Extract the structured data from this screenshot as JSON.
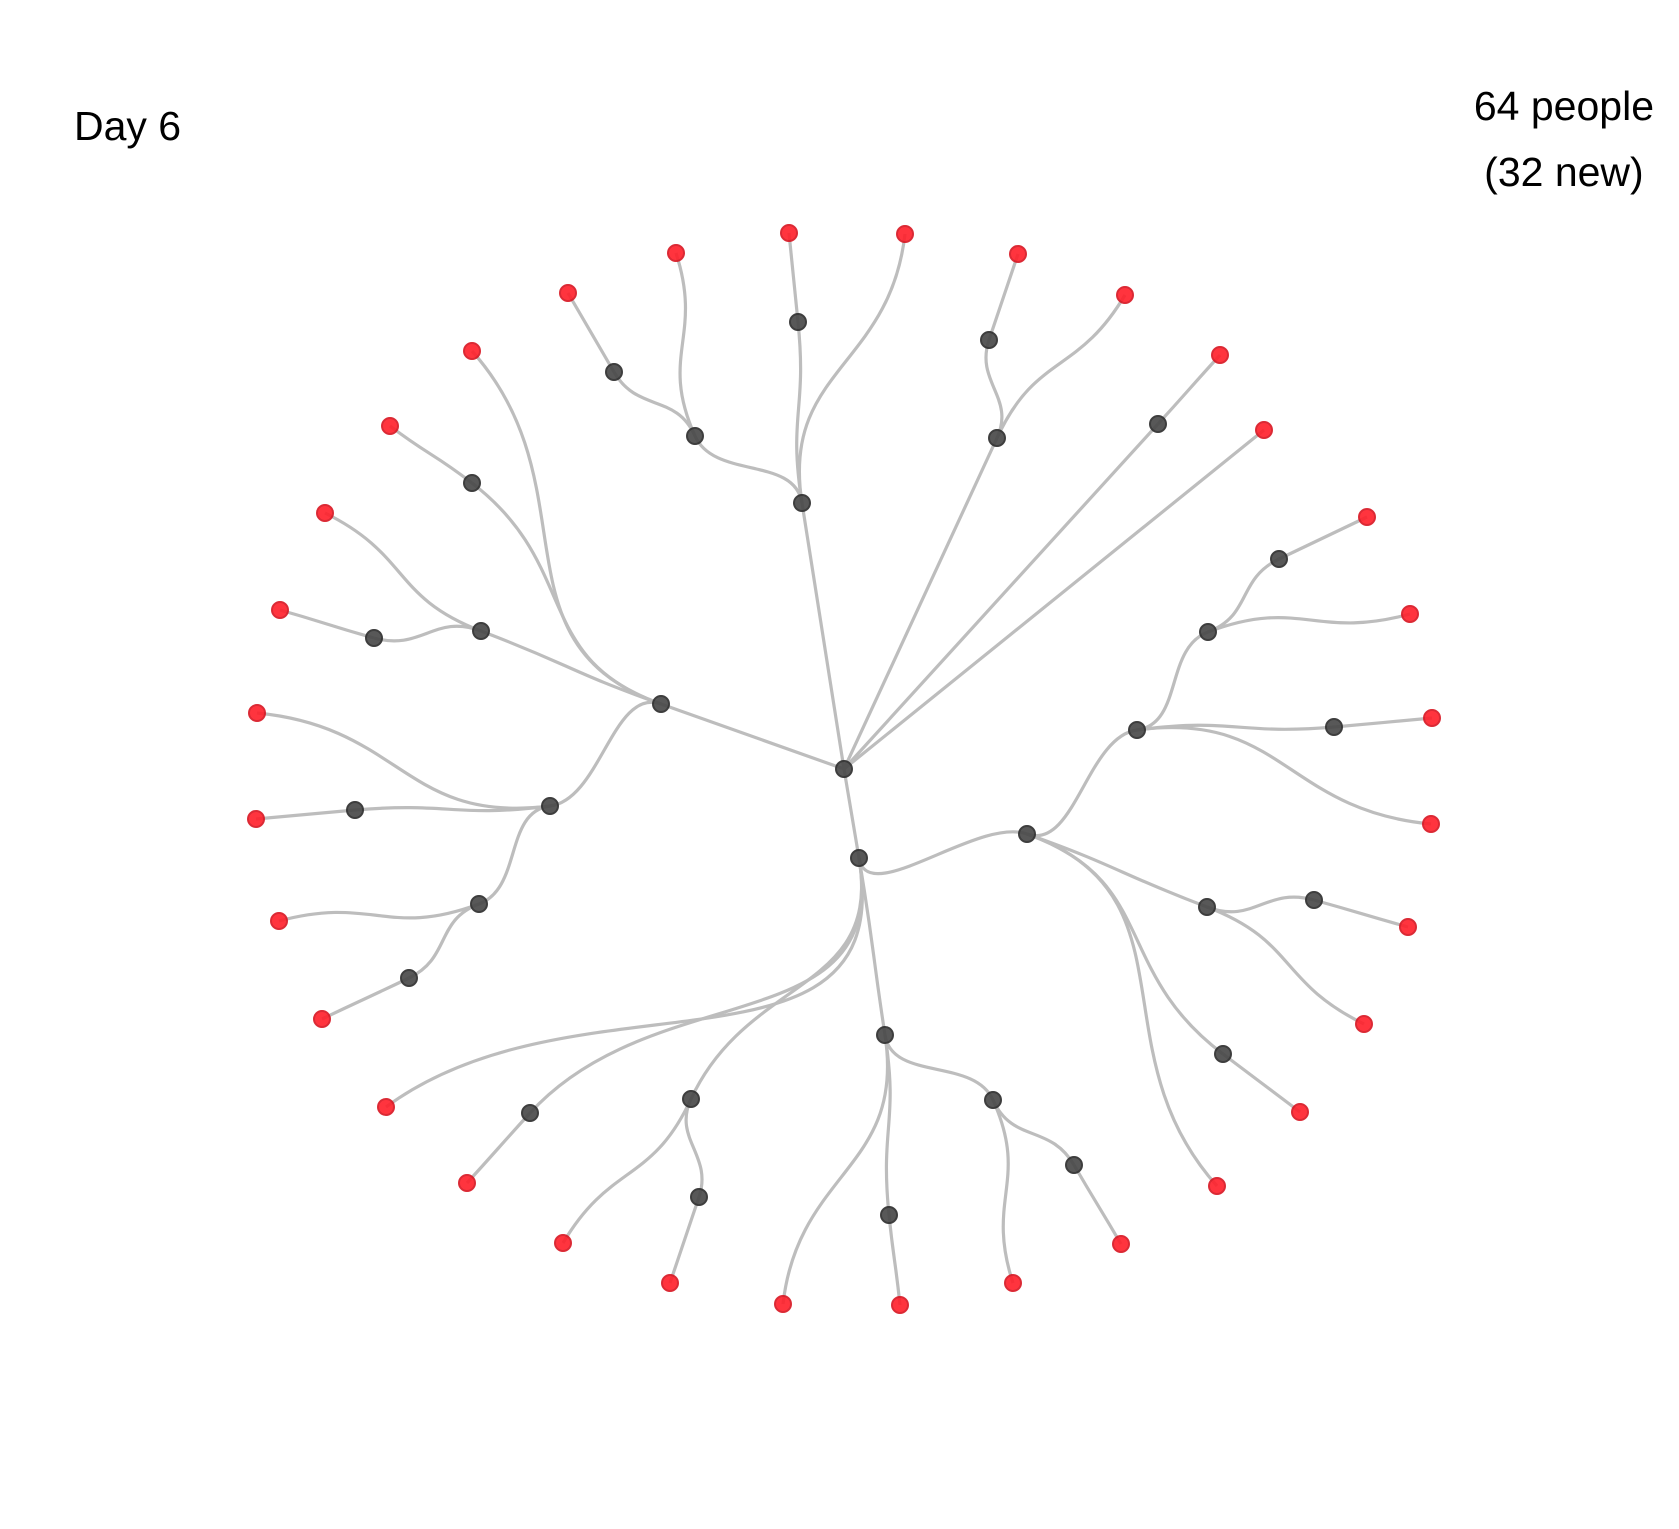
{
  "day_label": "Day 6",
  "count_label": "64 people",
  "new_label": "(32 new)",
  "colors": {
    "edge": "#bdbdbd",
    "existing_person": "#4a4a4a",
    "new_person": "#ff1f2a"
  },
  "tree": {
    "total_people": 64,
    "new_people": 32
  }
}
